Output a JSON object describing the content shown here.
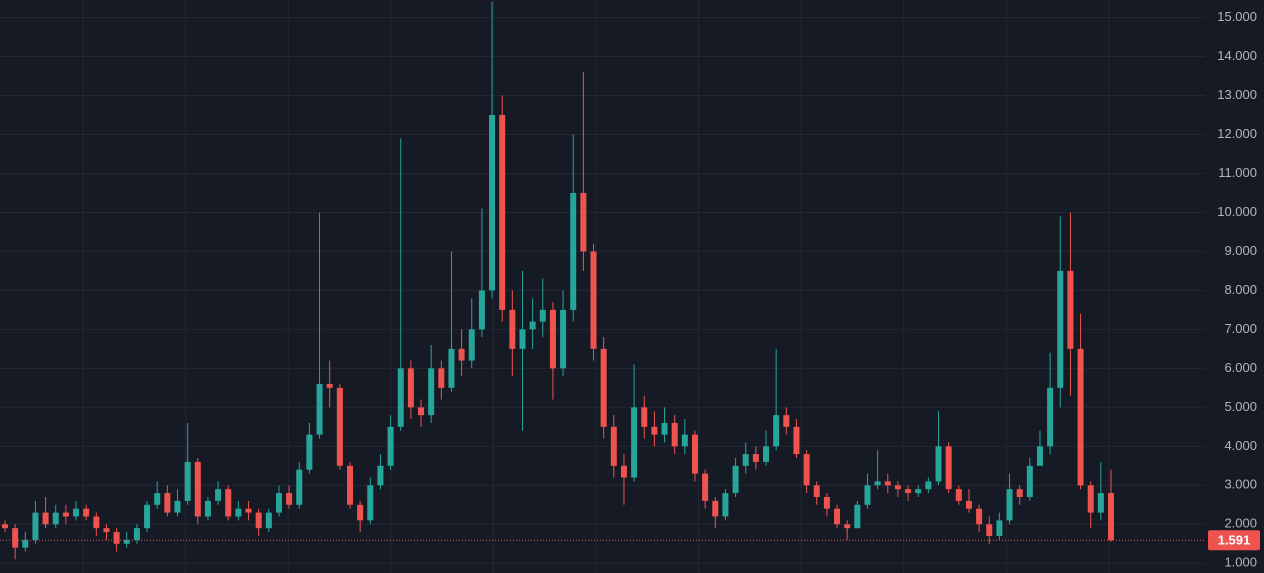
{
  "chart_data": {
    "type": "candlestick",
    "up_color": "#26a69a",
    "down_color": "#ef5350",
    "ylim": [
      0.75,
      15.45
    ],
    "yticks": [
      {
        "value": 1,
        "label": "1.000"
      },
      {
        "value": 2,
        "label": "2.000"
      },
      {
        "value": 3,
        "label": "3.000"
      },
      {
        "value": 4,
        "label": "4.000"
      },
      {
        "value": 5,
        "label": "5.000"
      },
      {
        "value": 6,
        "label": "6.000"
      },
      {
        "value": 7,
        "label": "7.000"
      },
      {
        "value": 8,
        "label": "8.000"
      },
      {
        "value": 9,
        "label": "9.000"
      },
      {
        "value": 10,
        "label": "10.000"
      },
      {
        "value": 11,
        "label": "11.000"
      },
      {
        "value": 12,
        "label": "12.000"
      },
      {
        "value": 13,
        "label": "13.000"
      },
      {
        "value": 14,
        "label": "14.000"
      },
      {
        "value": 15,
        "label": "15.000"
      }
    ],
    "grid": true,
    "open": [
      2.0,
      1.9,
      1.4,
      1.6,
      2.3,
      2.0,
      2.3,
      2.2,
      2.4,
      2.2,
      1.9,
      1.8,
      1.5,
      1.6,
      1.9,
      2.5,
      2.8,
      2.3,
      2.6,
      3.6,
      2.2,
      2.6,
      2.9,
      2.2,
      2.4,
      2.3,
      1.9,
      2.3,
      2.8,
      2.5,
      3.4,
      4.3,
      5.6,
      5.5,
      3.5,
      2.5,
      2.1,
      3.0,
      3.5,
      4.5,
      6.0,
      5.0,
      4.8,
      6.0,
      5.5,
      6.5,
      6.2,
      7.0,
      8.0,
      12.5,
      7.5,
      6.5,
      7.0,
      7.2,
      7.5,
      6.0,
      7.5,
      10.5,
      9.0,
      6.5,
      4.5,
      3.5,
      3.2,
      5.0,
      4.5,
      4.3,
      4.6,
      4.0,
      4.3,
      3.3,
      2.6,
      2.2,
      2.8,
      3.5,
      3.8,
      3.6,
      4.0,
      4.8,
      4.5,
      3.8,
      3.0,
      2.7,
      2.4,
      2.0,
      1.9,
      2.5,
      3.0,
      3.1,
      3.0,
      2.9,
      2.8,
      2.9,
      3.1,
      4.0,
      2.9,
      2.6,
      2.4,
      2.0,
      1.7,
      2.1,
      2.9,
      2.7,
      3.5,
      4.0,
      5.5,
      8.5,
      6.5,
      3.0,
      2.3,
      2.8
    ],
    "high": [
      2.1,
      2.0,
      1.8,
      2.6,
      2.7,
      2.5,
      2.5,
      2.6,
      2.5,
      2.3,
      2.0,
      1.9,
      1.8,
      2.0,
      2.6,
      3.1,
      3.0,
      2.9,
      4.6,
      3.7,
      2.7,
      3.1,
      3.0,
      2.6,
      2.6,
      2.4,
      2.4,
      3.0,
      3.0,
      3.6,
      4.6,
      10.0,
      6.2,
      5.6,
      3.6,
      2.6,
      3.2,
      3.8,
      4.8,
      11.9,
      6.2,
      5.2,
      6.6,
      6.2,
      9.0,
      7.0,
      7.8,
      10.1,
      15.4,
      13.0,
      8.0,
      8.5,
      7.8,
      8.3,
      7.7,
      8.0,
      12.0,
      13.6,
      9.2,
      6.8,
      4.8,
      3.8,
      6.1,
      5.3,
      4.9,
      5.0,
      4.8,
      4.7,
      4.4,
      3.4,
      2.7,
      2.9,
      3.7,
      4.1,
      4.0,
      4.4,
      6.5,
      5.0,
      4.7,
      3.9,
      3.1,
      2.8,
      2.5,
      2.1,
      2.6,
      3.3,
      3.9,
      3.3,
      3.1,
      3.0,
      3.0,
      3.2,
      4.9,
      4.1,
      3.0,
      2.9,
      2.5,
      2.2,
      2.3,
      3.3,
      3.0,
      3.7,
      4.4,
      6.4,
      9.9,
      10.0,
      7.4,
      3.1,
      3.6,
      3.4
    ],
    "low": [
      1.8,
      1.1,
      1.3,
      1.5,
      1.9,
      1.9,
      2.0,
      2.1,
      2.1,
      1.7,
      1.6,
      1.3,
      1.4,
      1.5,
      1.8,
      2.4,
      2.2,
      2.2,
      2.5,
      2.0,
      2.1,
      2.5,
      2.1,
      2.1,
      2.1,
      1.7,
      1.8,
      2.2,
      2.4,
      2.4,
      3.3,
      4.2,
      5.0,
      3.4,
      2.4,
      1.8,
      2.0,
      2.9,
      3.4,
      4.4,
      4.7,
      4.5,
      4.6,
      5.2,
      5.4,
      5.8,
      6.0,
      6.8,
      7.8,
      7.2,
      5.8,
      4.4,
      6.5,
      6.8,
      5.2,
      5.8,
      7.2,
      8.5,
      6.2,
      4.2,
      3.2,
      2.5,
      3.1,
      4.2,
      4.0,
      4.1,
      3.8,
      3.8,
      3.1,
      2.4,
      1.9,
      2.1,
      2.7,
      3.3,
      3.4,
      3.5,
      3.9,
      4.3,
      3.7,
      2.8,
      2.5,
      2.2,
      1.9,
      1.6,
      1.9,
      2.4,
      2.9,
      2.8,
      2.7,
      2.6,
      2.7,
      2.8,
      3.0,
      2.8,
      2.5,
      2.3,
      1.8,
      1.5,
      1.6,
      2.0,
      2.5,
      2.6,
      3.5,
      3.8,
      5.0,
      5.3,
      2.9,
      1.9,
      2.1,
      1.55
    ],
    "close": [
      1.9,
      1.4,
      1.6,
      2.3,
      2.0,
      2.3,
      2.2,
      2.4,
      2.2,
      1.9,
      1.8,
      1.5,
      1.6,
      1.9,
      2.5,
      2.8,
      2.3,
      2.6,
      3.6,
      2.2,
      2.6,
      2.9,
      2.2,
      2.4,
      2.3,
      1.9,
      2.3,
      2.8,
      2.5,
      3.4,
      4.3,
      5.6,
      5.5,
      3.5,
      2.5,
      2.1,
      3.0,
      3.5,
      4.5,
      6.0,
      5.0,
      4.8,
      6.0,
      5.5,
      6.5,
      6.2,
      7.0,
      8.0,
      12.5,
      7.5,
      6.5,
      7.0,
      7.2,
      7.5,
      6.0,
      7.5,
      10.5,
      9.0,
      6.5,
      4.5,
      3.5,
      3.2,
      5.0,
      4.5,
      4.3,
      4.6,
      4.0,
      4.3,
      3.3,
      2.6,
      2.2,
      2.8,
      3.5,
      3.8,
      3.6,
      4.0,
      4.8,
      4.5,
      3.8,
      3.0,
      2.7,
      2.4,
      2.0,
      1.9,
      2.5,
      3.0,
      3.1,
      3.0,
      2.9,
      2.8,
      2.9,
      3.1,
      4.0,
      2.9,
      2.6,
      2.4,
      2.0,
      1.7,
      2.1,
      2.9,
      2.7,
      3.5,
      4.0,
      5.5,
      8.5,
      6.5,
      3.0,
      2.3,
      2.8,
      1.591
    ]
  }
}
